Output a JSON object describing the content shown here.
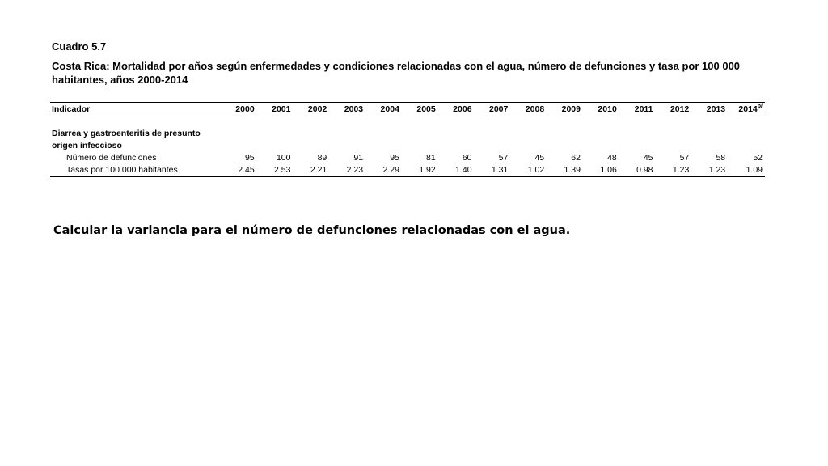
{
  "cuadro": "Cuadro 5.7",
  "title": "Costa Rica: Mortalidad por años según enfermedades y condiciones relacionadas con el agua, número de defunciones y tasa por 100 000 habitantes, años 2000-2014",
  "table": {
    "indicator_header": "Indicador",
    "years": [
      "2000",
      "2001",
      "2002",
      "2003",
      "2004",
      "2005",
      "2006",
      "2007",
      "2008",
      "2009",
      "2010",
      "2011",
      "2012",
      "2013",
      "2014"
    ],
    "last_year_suffix": "p/",
    "group_label_line1": "Diarrea y gastroenteritis de presunto",
    "group_label_line2": "origen infeccioso",
    "rows": [
      {
        "label": "Número de defunciones",
        "values": [
          "95",
          "100",
          "89",
          "91",
          "95",
          "81",
          "60",
          "57",
          "45",
          "62",
          "48",
          "45",
          "57",
          "58",
          "52"
        ]
      },
      {
        "label": "Tasas por 100.000 habitantes",
        "values": [
          "2.45",
          "2.53",
          "2.21",
          "2.23",
          "2.29",
          "1.92",
          "1.40",
          "1.31",
          "1.02",
          "1.39",
          "1.06",
          "0.98",
          "1.23",
          "1.23",
          "1.09"
        ]
      }
    ]
  },
  "question": "Calcular la variancia para el número de defunciones relacionadas con el agua."
}
